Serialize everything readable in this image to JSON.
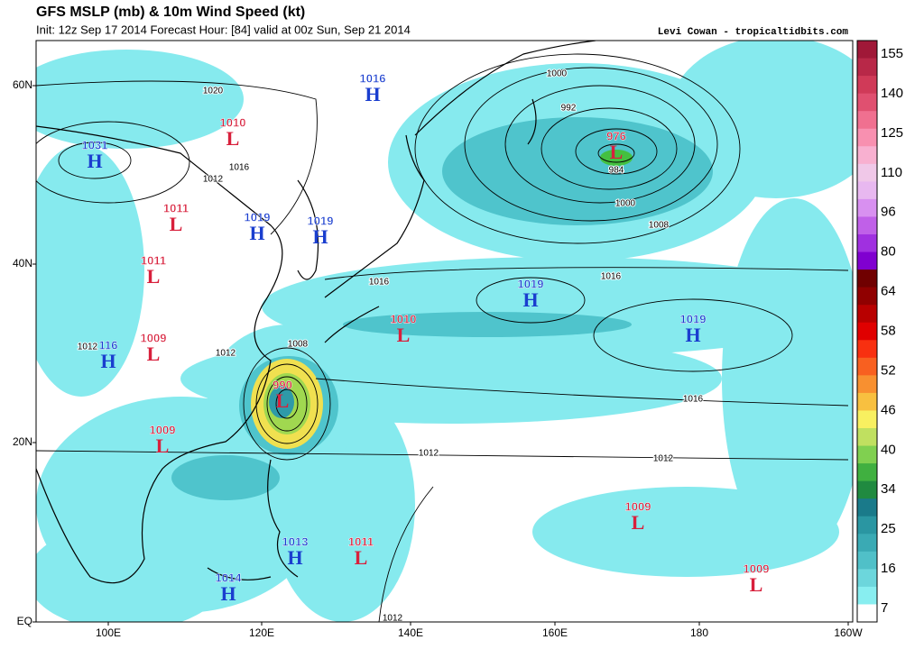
{
  "header": {
    "title": "GFS MSLP (mb) & 10m Wind Speed (kt)",
    "subtitle": "Init: 12z Sep 17 2014 Forecast Hour: [84] valid at 00z Sun, Sep 21 2014",
    "credit": "Levi Cowan - tropicaltidbits.com"
  },
  "map": {
    "lat_labels": [
      "60N",
      "40N",
      "20N",
      "EQ"
    ],
    "lon_labels": [
      "100E",
      "120E",
      "140E",
      "160E",
      "180",
      "160W"
    ],
    "centers": [
      {
        "value": 1016,
        "symbol": "H"
      },
      {
        "value": 1031,
        "symbol": "H"
      },
      {
        "value": 1010,
        "symbol": "L"
      },
      {
        "value": 976,
        "symbol": "L"
      },
      {
        "value": 1011,
        "symbol": "L"
      },
      {
        "value": 1019,
        "symbol": "H"
      },
      {
        "value": 1019,
        "symbol": "H"
      },
      {
        "value": 1011,
        "symbol": "L"
      },
      {
        "value": 1019,
        "symbol": "H"
      },
      {
        "value": 1010,
        "symbol": "L"
      },
      {
        "value": 1019,
        "symbol": "H"
      },
      {
        "value": 1009,
        "symbol": "L"
      },
      {
        "value": 116,
        "symbol": "H"
      },
      {
        "value": 990,
        "symbol": "L"
      },
      {
        "value": 1009,
        "symbol": "L"
      },
      {
        "value": 1009,
        "symbol": "L"
      },
      {
        "value": 1013,
        "symbol": "H"
      },
      {
        "value": 1011,
        "symbol": "L"
      },
      {
        "value": 1014,
        "symbol": "H"
      },
      {
        "value": 1009,
        "symbol": "L"
      }
    ],
    "isobar_labels": [
      1020,
      1012,
      1016,
      1000,
      992,
      984,
      1000,
      1008,
      1016,
      1008,
      1012,
      1016,
      1016,
      1012,
      1012,
      1012,
      1012
    ]
  },
  "colorbar": {
    "labels": [
      155,
      140,
      125,
      110,
      96,
      80,
      64,
      58,
      52,
      46,
      40,
      34,
      25,
      16,
      7
    ]
  }
}
